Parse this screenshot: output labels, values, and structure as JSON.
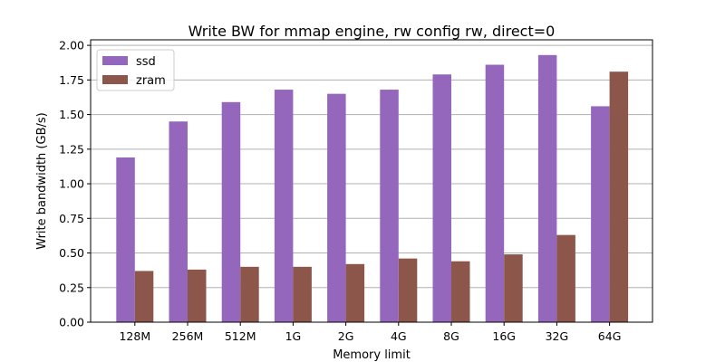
{
  "chart_data": {
    "type": "bar",
    "title": "Write BW for mmap engine, rw config rw, direct=0",
    "xlabel": "Memory limit",
    "ylabel": "Write bandwidth (GB/s)",
    "categories": [
      "128M",
      "256M",
      "512M",
      "1G",
      "2G",
      "4G",
      "8G",
      "16G",
      "32G",
      "64G"
    ],
    "series": [
      {
        "name": "ssd",
        "color": "#9467bd",
        "values": [
          1.19,
          1.45,
          1.59,
          1.68,
          1.65,
          1.68,
          1.79,
          1.86,
          1.93,
          1.56
        ]
      },
      {
        "name": "zram",
        "color": "#8c564b",
        "values": [
          0.37,
          0.38,
          0.4,
          0.4,
          0.42,
          0.46,
          0.44,
          0.49,
          0.63,
          1.81
        ]
      }
    ],
    "ylim": [
      0,
      2.04
    ],
    "yticks": [
      "0.00",
      "0.25",
      "0.50",
      "0.75",
      "1.00",
      "1.25",
      "1.50",
      "1.75",
      "2.00"
    ],
    "grid": "y",
    "legend_position": "top-left"
  }
}
